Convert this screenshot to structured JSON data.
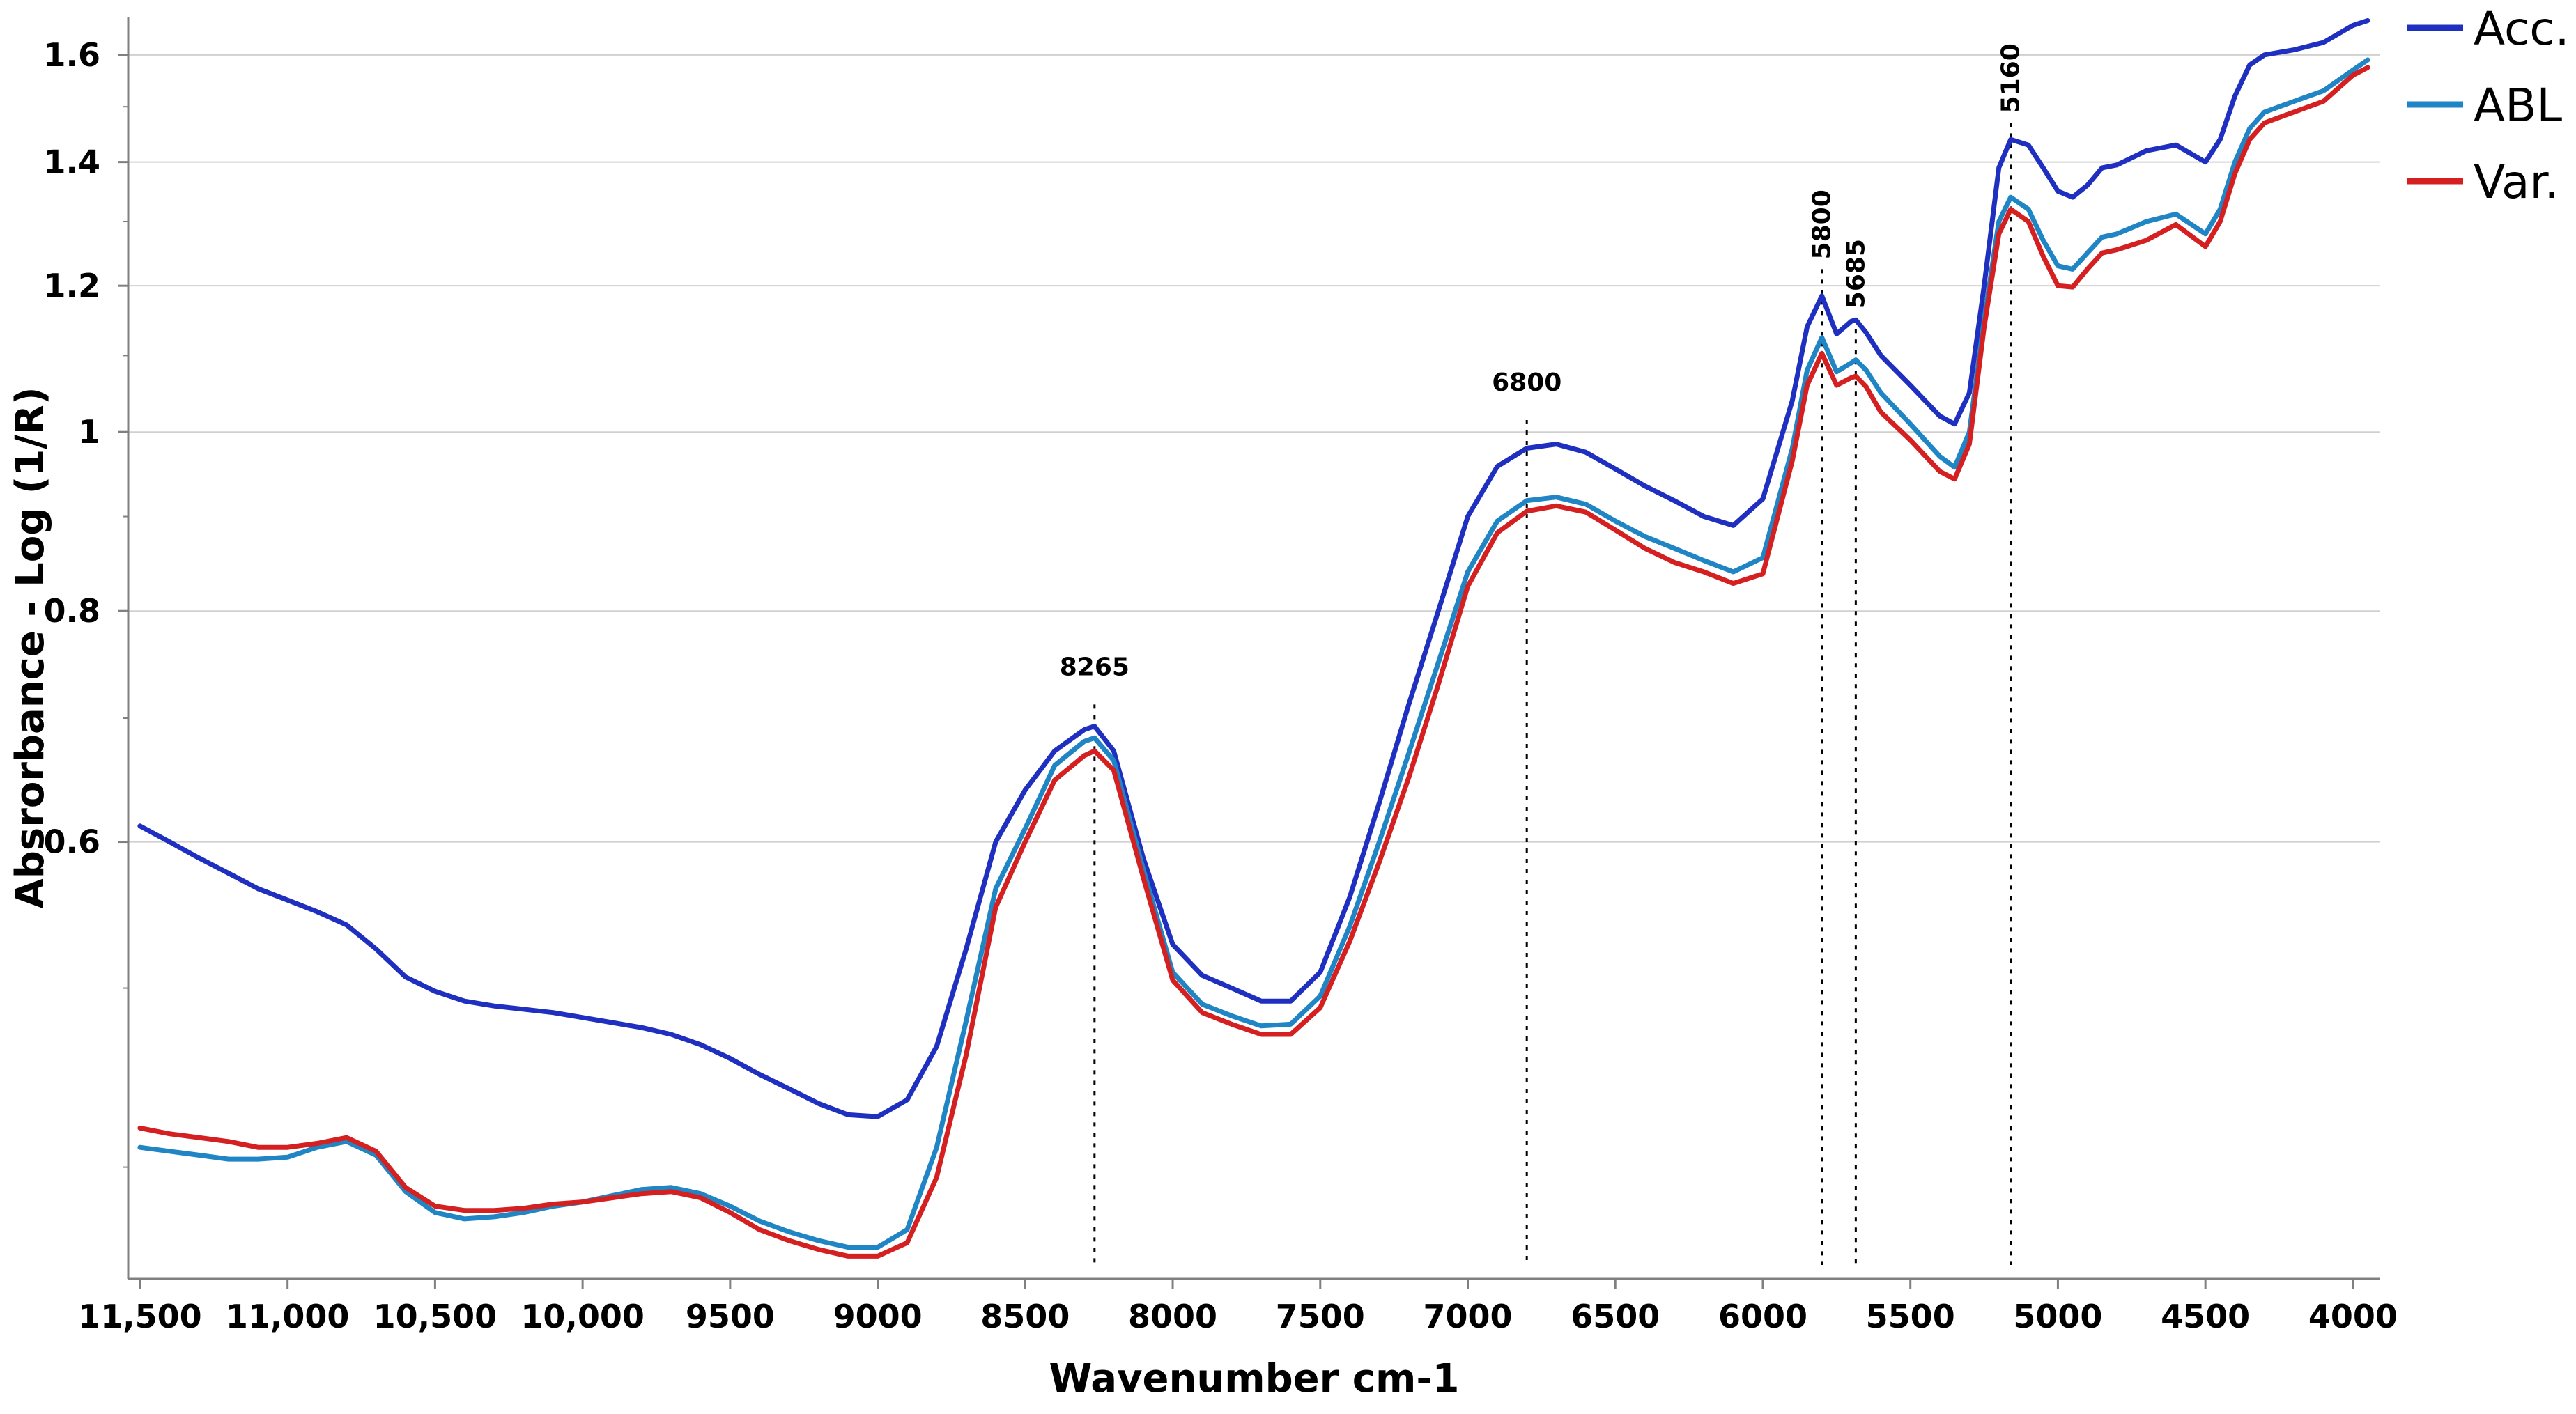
{
  "chart_data": {
    "type": "line",
    "title": "",
    "xlabel": "Wavenumber cm-1",
    "ylabel": "Absrorbance - Log (1/R)",
    "x_reversed": true,
    "xlim": [
      11540,
      3910
    ],
    "ylim": [
      0.348,
      1.678
    ],
    "y_scale": "log",
    "grid": true,
    "legend_position": "top-right",
    "x_ticks": [
      11500,
      11000,
      10500,
      10000,
      9500,
      9000,
      8500,
      8000,
      7500,
      7000,
      6500,
      6000,
      5500,
      5000,
      4500,
      4000
    ],
    "x_tick_labels": [
      "11,500",
      "11,000",
      "10,500",
      "10,000",
      "9500",
      "9000",
      "8500",
      "8000",
      "7500",
      "7000",
      "6500",
      "6000",
      "5500",
      "5000",
      "4500",
      "4000"
    ],
    "y_ticks": [
      0.6,
      0.8,
      1.0,
      1.2,
      1.4,
      1.6
    ],
    "y_tick_labels": [
      "0.6",
      "0.8",
      "1",
      "1.2",
      "1.4",
      "1.6"
    ],
    "y_minor_ticks": [
      0.4,
      0.5,
      0.7,
      0.9,
      1.1,
      1.3,
      1.5
    ],
    "annotations": [
      {
        "label": "8265",
        "x": 8265,
        "y": 0.712
      },
      {
        "label": "6800",
        "x": 6800,
        "y": 1.015
      },
      {
        "label": "5800",
        "x": 5800,
        "y": 1.225
      },
      {
        "label": "5685",
        "x": 5685,
        "y": 1.152
      },
      {
        "label": "5160",
        "x": 5160,
        "y": 1.47
      }
    ],
    "x": [
      11500,
      11400,
      11300,
      11200,
      11100,
      11000,
      10900,
      10800,
      10700,
      10600,
      10500,
      10400,
      10300,
      10200,
      10100,
      10000,
      9900,
      9800,
      9700,
      9600,
      9500,
      9400,
      9300,
      9200,
      9100,
      9000,
      8900,
      8800,
      8700,
      8600,
      8500,
      8400,
      8300,
      8265,
      8200,
      8100,
      8000,
      7900,
      7800,
      7700,
      7600,
      7500,
      7400,
      7300,
      7200,
      7100,
      7000,
      6900,
      6800,
      6700,
      6600,
      6500,
      6400,
      6300,
      6200,
      6100,
      6000,
      5900,
      5850,
      5800,
      5750,
      5700,
      5685,
      5650,
      5600,
      5500,
      5400,
      5350,
      5300,
      5250,
      5200,
      5160,
      5100,
      5050,
      5000,
      4950,
      4900,
      4850,
      4800,
      4700,
      4600,
      4500,
      4450,
      4400,
      4350,
      4300,
      4200,
      4100,
      4000,
      3950
    ],
    "series": [
      {
        "name": "Acc.",
        "color": "#1f2fbf",
        "values": [
          0.612,
          0.6,
          0.588,
          0.577,
          0.566,
          0.558,
          0.55,
          0.541,
          0.525,
          0.507,
          0.498,
          0.492,
          0.489,
          0.487,
          0.485,
          0.482,
          0.479,
          0.476,
          0.472,
          0.466,
          0.458,
          0.449,
          0.441,
          0.433,
          0.427,
          0.426,
          0.435,
          0.465,
          0.525,
          0.6,
          0.64,
          0.672,
          0.69,
          0.693,
          0.672,
          0.588,
          0.528,
          0.508,
          0.5,
          0.492,
          0.492,
          0.51,
          0.56,
          0.63,
          0.712,
          0.8,
          0.9,
          0.958,
          0.98,
          0.985,
          0.975,
          0.955,
          0.935,
          0.918,
          0.9,
          0.89,
          0.92,
          1.04,
          1.14,
          1.185,
          1.13,
          1.148,
          1.15,
          1.132,
          1.1,
          1.06,
          1.02,
          1.01,
          1.05,
          1.2,
          1.39,
          1.44,
          1.43,
          1.39,
          1.35,
          1.34,
          1.36,
          1.39,
          1.395,
          1.42,
          1.43,
          1.4,
          1.44,
          1.52,
          1.58,
          1.6,
          1.61,
          1.625,
          1.66,
          1.67
        ]
      },
      {
        "name": "ABL",
        "color": "#1f85c4",
        "values": [
          0.41,
          0.408,
          0.406,
          0.404,
          0.404,
          0.405,
          0.41,
          0.413,
          0.406,
          0.388,
          0.378,
          0.375,
          0.376,
          0.378,
          0.381,
          0.383,
          0.386,
          0.389,
          0.39,
          0.387,
          0.381,
          0.374,
          0.369,
          0.365,
          0.362,
          0.362,
          0.37,
          0.41,
          0.48,
          0.566,
          0.61,
          0.66,
          0.68,
          0.683,
          0.664,
          0.58,
          0.51,
          0.49,
          0.483,
          0.477,
          0.478,
          0.495,
          0.54,
          0.6,
          0.67,
          0.75,
          0.84,
          0.895,
          0.918,
          0.922,
          0.914,
          0.895,
          0.878,
          0.865,
          0.852,
          0.84,
          0.855,
          0.98,
          1.08,
          1.125,
          1.078,
          1.09,
          1.094,
          1.08,
          1.05,
          1.01,
          0.97,
          0.957,
          1.0,
          1.15,
          1.3,
          1.34,
          1.32,
          1.27,
          1.23,
          1.225,
          1.25,
          1.275,
          1.28,
          1.3,
          1.312,
          1.28,
          1.32,
          1.4,
          1.46,
          1.49,
          1.51,
          1.53,
          1.57,
          1.59
        ]
      },
      {
        "name": "Var.",
        "color": "#d42020",
        "values": [
          0.42,
          0.417,
          0.415,
          0.413,
          0.41,
          0.41,
          0.412,
          0.415,
          0.408,
          0.39,
          0.381,
          0.379,
          0.379,
          0.38,
          0.382,
          0.383,
          0.385,
          0.387,
          0.388,
          0.385,
          0.378,
          0.37,
          0.365,
          0.361,
          0.358,
          0.358,
          0.364,
          0.395,
          0.46,
          0.553,
          0.6,
          0.648,
          0.668,
          0.672,
          0.656,
          0.574,
          0.505,
          0.485,
          0.478,
          0.472,
          0.472,
          0.488,
          0.53,
          0.585,
          0.65,
          0.73,
          0.825,
          0.882,
          0.906,
          0.912,
          0.905,
          0.885,
          0.865,
          0.85,
          0.84,
          0.828,
          0.838,
          0.965,
          1.06,
          1.103,
          1.06,
          1.07,
          1.072,
          1.058,
          1.025,
          0.99,
          0.952,
          0.943,
          0.985,
          1.14,
          1.28,
          1.32,
          1.3,
          1.245,
          1.2,
          1.198,
          1.225,
          1.25,
          1.255,
          1.27,
          1.295,
          1.26,
          1.3,
          1.38,
          1.44,
          1.47,
          1.49,
          1.51,
          1.56,
          1.575
        ]
      }
    ]
  }
}
